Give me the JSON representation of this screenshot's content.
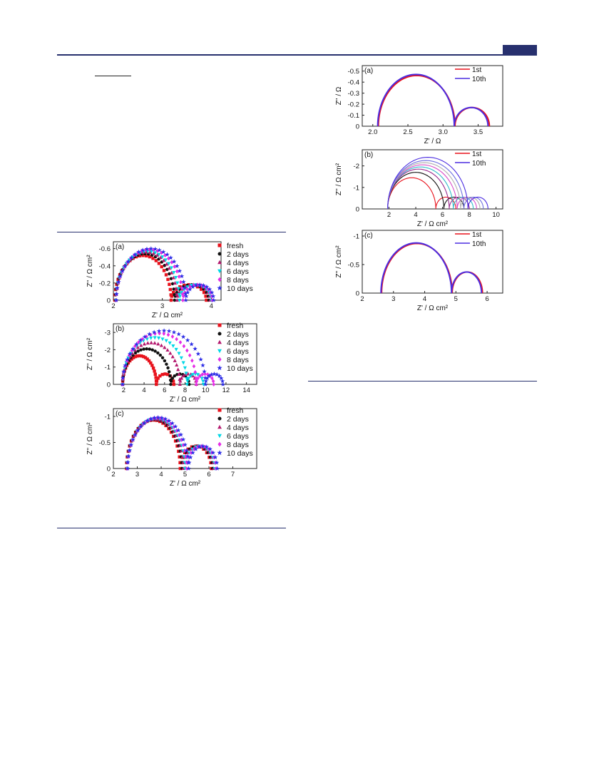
{
  "colors": {
    "rule": "#27306e",
    "series": [
      "#e8121c",
      "#111111",
      "#b4196e",
      "#00d8e6",
      "#e62de6",
      "#2d2de6"
    ],
    "cycle": [
      "#e8121c",
      "#4b2de0"
    ]
  },
  "chart_data": [
    {
      "id": "aging-a",
      "type": "scatter",
      "panel_label": "(a)",
      "xlabel": "Z' / Ω cm²",
      "ylabel": "Z'' / Ω cm²",
      "xlim": [
        2,
        4.2
      ],
      "ylim": [
        0,
        -0.68
      ],
      "xticks": [
        2,
        3,
        4
      ],
      "yticks": [
        0.0,
        -0.2,
        -0.4,
        -0.6
      ],
      "legend": "right",
      "series": [
        {
          "name": "fresh",
          "marker": "square",
          "x1": 2.03,
          "x2": 3.18,
          "x3": 3.9,
          "h1": 0.52,
          "h2": 0.18
        },
        {
          "name": "2 days",
          "marker": "circle",
          "x1": 2.04,
          "x2": 3.25,
          "x3": 3.95,
          "h1": 0.54,
          "h2": 0.18
        },
        {
          "name": "4 days",
          "marker": "triangle-up",
          "x1": 2.05,
          "x2": 3.3,
          "x3": 3.98,
          "h1": 0.56,
          "h2": 0.18
        },
        {
          "name": "6 days",
          "marker": "triangle-down",
          "x1": 2.05,
          "x2": 3.35,
          "x3": 4.0,
          "h1": 0.57,
          "h2": 0.18
        },
        {
          "name": "8 days",
          "marker": "diamond",
          "x1": 2.06,
          "x2": 3.42,
          "x3": 4.02,
          "h1": 0.59,
          "h2": 0.18
        },
        {
          "name": "10 days",
          "marker": "star",
          "x1": 2.06,
          "x2": 3.48,
          "x3": 4.05,
          "h1": 0.6,
          "h2": 0.18
        }
      ]
    },
    {
      "id": "aging-b",
      "type": "scatter",
      "panel_label": "(b)",
      "xlabel": "Z' / Ω cm²",
      "ylabel": "Z'' / Ω cm²",
      "xlim": [
        1,
        15
      ],
      "ylim": [
        0,
        -3.5
      ],
      "xticks": [
        2,
        4,
        6,
        8,
        10,
        12,
        14
      ],
      "yticks": [
        0,
        -1,
        -2,
        -3
      ],
      "legend": "right",
      "series": [
        {
          "name": "fresh",
          "marker": "square",
          "x1": 1.9,
          "x2": 5.2,
          "x3": 6.9,
          "h1": 1.65,
          "h2": 0.6
        },
        {
          "name": "2 days",
          "marker": "circle",
          "x1": 1.9,
          "x2": 6.6,
          "x3": 8.4,
          "h1": 2.05,
          "h2": 0.6
        },
        {
          "name": "4 days",
          "marker": "triangle-up",
          "x1": 1.9,
          "x2": 7.5,
          "x3": 9.1,
          "h1": 2.4,
          "h2": 0.6
        },
        {
          "name": "6 days",
          "marker": "triangle-down",
          "x1": 1.9,
          "x2": 8.2,
          "x3": 9.8,
          "h1": 2.7,
          "h2": 0.6
        },
        {
          "name": "8 days",
          "marker": "diamond",
          "x1": 1.9,
          "x2": 9.1,
          "x3": 10.8,
          "h1": 2.95,
          "h2": 0.6
        },
        {
          "name": "10 days",
          "marker": "star",
          "x1": 1.9,
          "x2": 10.0,
          "x3": 11.7,
          "h1": 3.1,
          "h2": 0.6
        }
      ]
    },
    {
      "id": "aging-c",
      "type": "scatter",
      "panel_label": "(c)",
      "xlabel": "Z' / Ω cm²",
      "ylabel": "Z'' / Ω cm²",
      "xlim": [
        2,
        8
      ],
      "ylim": [
        0,
        -1.15
      ],
      "xticks": [
        2,
        3,
        4,
        5,
        6,
        7
      ],
      "yticks": [
        0.0,
        -0.5,
        -1.0
      ],
      "legend": "right",
      "series": [
        {
          "name": "fresh",
          "marker": "square",
          "x1": 2.55,
          "x2": 4.8,
          "x3": 6.1,
          "h1": 0.93,
          "h2": 0.43
        },
        {
          "name": "2 days",
          "marker": "circle",
          "x1": 2.56,
          "x2": 4.87,
          "x3": 6.15,
          "h1": 0.94,
          "h2": 0.43
        },
        {
          "name": "4 days",
          "marker": "triangle-up",
          "x1": 2.57,
          "x2": 4.93,
          "x3": 6.2,
          "h1": 0.95,
          "h2": 0.43
        },
        {
          "name": "6 days",
          "marker": "triangle-down",
          "x1": 2.58,
          "x2": 5.0,
          "x3": 6.25,
          "h1": 0.96,
          "h2": 0.43
        },
        {
          "name": "8 days",
          "marker": "diamond",
          "x1": 2.59,
          "x2": 5.07,
          "x3": 6.3,
          "h1": 0.97,
          "h2": 0.43
        },
        {
          "name": "10 days",
          "marker": "star",
          "x1": 2.6,
          "x2": 5.15,
          "x3": 6.35,
          "h1": 0.98,
          "h2": 0.43
        }
      ]
    },
    {
      "id": "cycle-a",
      "type": "line",
      "panel_label": "(a)",
      "xlabel": "Z' / Ω",
      "ylabel": "Z'' / Ω",
      "xlim": [
        1.85,
        3.85
      ],
      "ylim": [
        0,
        -0.55
      ],
      "xticks": [
        2.0,
        2.5,
        3.0,
        3.5
      ],
      "xtick_labels": [
        "2.0",
        "2.5",
        "3.0",
        "3.5"
      ],
      "yticks": [
        0.0,
        -0.1,
        -0.2,
        -0.3,
        -0.4,
        -0.5
      ],
      "legend": "top-right",
      "series": [
        {
          "name": "1st",
          "x1": 2.08,
          "x2": 3.17,
          "x3": 3.66,
          "h1": 0.46,
          "h2": 0.17
        },
        {
          "name": "10th",
          "x1": 2.07,
          "x2": 3.16,
          "x3": 3.64,
          "h1": 0.47,
          "h2": 0.17
        }
      ]
    },
    {
      "id": "cycle-b",
      "type": "line",
      "panel_label": "(b)",
      "xlabel": "Z' / Ω cm²",
      "ylabel": "Z'' / Ω cm²",
      "xlim": [
        0,
        10.5
      ],
      "ylim": [
        0,
        -2.75
      ],
      "xticks": [
        2,
        4,
        6,
        8,
        10
      ],
      "yticks": [
        0,
        -1,
        -2
      ],
      "legend": "top-right",
      "series": [
        {
          "name": "1st",
          "x1": 1.9,
          "x2": 5.5,
          "x3": 7.0,
          "h1": 1.45,
          "h2": 0.55
        },
        {
          "name": "",
          "x1": 1.9,
          "x2": 6.1,
          "x3": 7.6,
          "h1": 1.7,
          "h2": 0.55
        },
        {
          "name": "",
          "x1": 1.9,
          "x2": 6.5,
          "x3": 8.0,
          "h1": 1.85,
          "h2": 0.55
        },
        {
          "name": "",
          "x1": 1.9,
          "x2": 6.8,
          "x3": 8.3,
          "h1": 1.95,
          "h2": 0.55
        },
        {
          "name": "",
          "x1": 1.9,
          "x2": 7.1,
          "x3": 8.55,
          "h1": 2.05,
          "h2": 0.55
        },
        {
          "name": "",
          "x1": 1.9,
          "x2": 7.35,
          "x3": 8.8,
          "h1": 2.15,
          "h2": 0.55
        },
        {
          "name": "",
          "x1": 1.9,
          "x2": 7.6,
          "x3": 9.05,
          "h1": 2.25,
          "h2": 0.55
        },
        {
          "name": "10th",
          "x1": 1.9,
          "x2": 7.9,
          "x3": 9.4,
          "h1": 2.4,
          "h2": 0.55
        }
      ]
    },
    {
      "id": "cycle-c",
      "type": "line",
      "panel_label": "(c)",
      "xlabel": "Z' / Ω cm²",
      "ylabel": "Z'' / Ω cm²",
      "xlim": [
        2,
        6.5
      ],
      "ylim": [
        0,
        -1.1
      ],
      "xticks": [
        2,
        3,
        4,
        5,
        6
      ],
      "yticks": [
        0.0,
        -0.5,
        -1.0
      ],
      "legend": "top-right",
      "series": [
        {
          "name": "1st",
          "x1": 2.62,
          "x2": 4.88,
          "x3": 5.85,
          "h1": 0.87,
          "h2": 0.37
        },
        {
          "name": "10th",
          "x1": 2.6,
          "x2": 4.86,
          "x3": 5.82,
          "h1": 0.88,
          "h2": 0.37
        }
      ]
    }
  ]
}
